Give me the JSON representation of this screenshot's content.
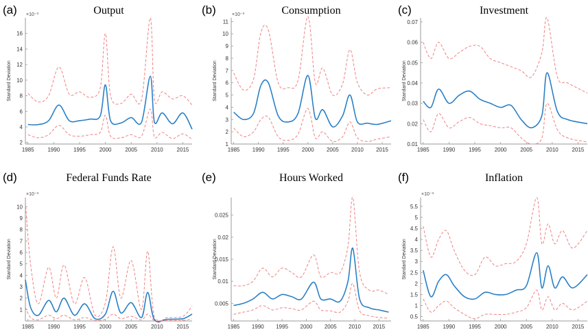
{
  "colors": {
    "median": "#2a7fc6",
    "band": "#f08080",
    "axis": "#9a9a9a"
  },
  "chart_data": [
    {
      "type": "line",
      "panel_label": "(a)",
      "title": "Output",
      "ylabel": "Standard Deviation",
      "exponent": "×10⁻³",
      "xlim": [
        1984.5,
        2016.8
      ],
      "ylim": [
        1.8,
        18
      ],
      "yticks": [
        2,
        4,
        6,
        8,
        10,
        12,
        14,
        16
      ],
      "xticks": [
        1985,
        1990,
        1995,
        2000,
        2005,
        2010,
        2015
      ],
      "x": [
        1985,
        1987,
        1989,
        1991,
        1993,
        1995,
        1997,
        1999,
        2000,
        2001,
        2003,
        2005,
        2007,
        2008.7,
        2009.5,
        2011,
        2013,
        2015,
        2016.8
      ],
      "series": [
        {
          "name": "",
          "role": "upper",
          "values": [
            8.3,
            7.2,
            8.0,
            11.7,
            8.2,
            8.5,
            7.8,
            9.0,
            16.0,
            8.0,
            7.0,
            8.2,
            7.5,
            18.0,
            7.5,
            8.5,
            7.6,
            8.0,
            6.8
          ]
        },
        {
          "name": "",
          "role": "median",
          "values": [
            4.3,
            4.3,
            4.8,
            6.8,
            4.8,
            4.8,
            5.0,
            5.4,
            9.4,
            4.8,
            4.5,
            5.2,
            4.6,
            10.5,
            4.6,
            5.8,
            4.4,
            5.8,
            3.7
          ]
        },
        {
          "name": "",
          "role": "lower",
          "values": [
            3.0,
            2.6,
            3.0,
            4.2,
            3.0,
            2.8,
            3.0,
            3.3,
            5.5,
            2.8,
            2.6,
            3.0,
            2.8,
            6.3,
            2.7,
            3.3,
            2.5,
            3.1,
            2.4
          ]
        }
      ]
    },
    {
      "type": "line",
      "panel_label": "(b)",
      "title": "Consumption",
      "ylabel": "Standard Deviation",
      "exponent": "×10⁻³",
      "xlim": [
        1984.5,
        2016.8
      ],
      "ylim": [
        1,
        11.3
      ],
      "yticks": [
        1,
        2,
        3,
        4,
        5,
        6,
        7,
        8,
        9,
        10,
        11
      ],
      "xticks": [
        1985,
        1990,
        1995,
        2000,
        2005,
        2010,
        2015
      ],
      "x": [
        1985,
        1987,
        1989,
        1990.5,
        1992,
        1994,
        1996,
        1998,
        2000,
        2001.5,
        2003,
        2005,
        2007,
        2008.5,
        2010,
        2012,
        2014,
        2016.8
      ],
      "series": [
        {
          "name": "",
          "role": "upper",
          "values": [
            6.8,
            5.4,
            6.3,
            10.1,
            10.3,
            6.0,
            5.6,
            6.2,
            11.4,
            6.0,
            7.2,
            5.0,
            5.9,
            8.7,
            6.0,
            5.0,
            5.5,
            5.6
          ]
        },
        {
          "name": "",
          "role": "median",
          "values": [
            3.6,
            3.0,
            3.5,
            5.8,
            6.0,
            3.3,
            2.8,
            3.5,
            6.6,
            3.1,
            3.8,
            2.4,
            3.3,
            5.0,
            2.8,
            2.7,
            2.6,
            2.9
          ]
        },
        {
          "name": "",
          "role": "lower",
          "values": [
            2.3,
            1.6,
            2.0,
            3.0,
            3.2,
            1.6,
            1.3,
            1.8,
            3.9,
            1.5,
            2.0,
            1.2,
            1.6,
            2.8,
            1.5,
            1.2,
            1.4,
            1.6
          ]
        }
      ]
    },
    {
      "type": "line",
      "panel_label": "(c)",
      "title": "Investment",
      "ylabel": "Standard Deviation",
      "exponent": "",
      "xlim": [
        1984.5,
        2016.8
      ],
      "ylim": [
        0.01,
        0.072
      ],
      "yticks": [
        0.01,
        0.02,
        0.03,
        0.04,
        0.05,
        0.06,
        0.07
      ],
      "xticks": [
        1985,
        1990,
        1995,
        2000,
        2005,
        2010,
        2015
      ],
      "x": [
        1985,
        1986.5,
        1988,
        1990,
        1992,
        1994,
        1996,
        1998,
        2000,
        2002,
        2004,
        2006,
        2008,
        2009,
        2011,
        2013,
        2016.8
      ],
      "series": [
        {
          "name": "",
          "role": "upper",
          "values": [
            0.06,
            0.052,
            0.06,
            0.052,
            0.055,
            0.058,
            0.058,
            0.052,
            0.05,
            0.048,
            0.046,
            0.043,
            0.055,
            0.072,
            0.043,
            0.04,
            0.035
          ]
        },
        {
          "name": "",
          "role": "median",
          "values": [
            0.031,
            0.028,
            0.037,
            0.03,
            0.034,
            0.036,
            0.032,
            0.03,
            0.028,
            0.029,
            0.022,
            0.018,
            0.024,
            0.045,
            0.026,
            0.022,
            0.02
          ]
        },
        {
          "name": "",
          "role": "lower",
          "values": [
            0.022,
            0.016,
            0.025,
            0.018,
            0.021,
            0.023,
            0.02,
            0.019,
            0.018,
            0.018,
            0.013,
            0.01,
            0.013,
            0.03,
            0.017,
            0.013,
            0.011
          ]
        }
      ]
    },
    {
      "type": "line",
      "panel_label": "(d)",
      "title": "Federal Funds Rate",
      "ylabel": "Standard Deviation",
      "exponent": "×10⁻³",
      "xlim": [
        1984.5,
        2016.8
      ],
      "ylim": [
        0,
        10.8
      ],
      "yticks": [
        1,
        2,
        3,
        4,
        5,
        6,
        7,
        8,
        9,
        10
      ],
      "xticks": [
        1985,
        1990,
        1995,
        2000,
        2005,
        2010,
        2015
      ],
      "x": [
        1984.5,
        1985.5,
        1987,
        1989,
        1990.5,
        1992,
        1994,
        1996,
        1998,
        2000,
        2001.5,
        2003,
        2005,
        2007,
        2008.2,
        2009.5,
        2012,
        2015,
        2016.8
      ],
      "series": [
        {
          "name": "",
          "role": "upper",
          "values": [
            10.4,
            5.0,
            1.5,
            4.7,
            2.0,
            4.9,
            1.5,
            3.8,
            0.5,
            1.6,
            6.5,
            2.0,
            5.3,
            1.0,
            6.1,
            0.3,
            0.3,
            0.4,
            1.3
          ]
        },
        {
          "name": "",
          "role": "median",
          "values": [
            3.6,
            1.2,
            0.5,
            1.8,
            0.8,
            2.0,
            0.5,
            1.5,
            0.2,
            0.6,
            2.6,
            0.7,
            1.6,
            0.3,
            2.5,
            0.1,
            0.15,
            0.2,
            0.6
          ]
        },
        {
          "name": "",
          "role": "lower",
          "values": [
            1.2,
            0.3,
            0.1,
            0.5,
            0.2,
            0.5,
            0.1,
            0.3,
            0.05,
            0.15,
            0.6,
            0.2,
            0.4,
            0.1,
            0.6,
            0.05,
            0.05,
            0.05,
            0.2
          ]
        }
      ]
    },
    {
      "type": "line",
      "panel_label": "(e)",
      "title": "Hours Worked",
      "ylabel": "Standard Deviation",
      "exponent": "",
      "xlim": [
        1984.5,
        2017.5
      ],
      "ylim": [
        0.001,
        0.029
      ],
      "yticks": [
        0.005,
        0.01,
        0.015,
        0.02,
        0.025
      ],
      "xticks": [
        1985,
        1990,
        1995,
        2000,
        2005,
        2010,
        2015
      ],
      "x": [
        1985,
        1987,
        1989,
        1991,
        1993,
        1995,
        1997,
        1999,
        2001.5,
        2003,
        2005,
        2007,
        2008.6,
        2009.6,
        2011,
        2013,
        2015,
        2017
      ],
      "series": [
        {
          "name": "",
          "role": "upper",
          "values": [
            0.009,
            0.009,
            0.01,
            0.013,
            0.011,
            0.013,
            0.012,
            0.011,
            0.016,
            0.011,
            0.012,
            0.012,
            0.018,
            0.029,
            0.012,
            0.008,
            0.008,
            0.007
          ]
        },
        {
          "name": "",
          "role": "median",
          "values": [
            0.0045,
            0.005,
            0.006,
            0.0075,
            0.006,
            0.007,
            0.0065,
            0.006,
            0.0098,
            0.006,
            0.006,
            0.0055,
            0.01,
            0.0175,
            0.006,
            0.004,
            0.0035,
            0.003
          ]
        },
        {
          "name": "",
          "role": "lower",
          "values": [
            0.0025,
            0.003,
            0.0035,
            0.0045,
            0.0035,
            0.004,
            0.0038,
            0.0035,
            0.0055,
            0.0035,
            0.0033,
            0.003,
            0.0055,
            0.0095,
            0.0033,
            0.0022,
            0.0018,
            0.0016
          ]
        }
      ]
    },
    {
      "type": "line",
      "panel_label": "(f)",
      "title": "Inflation",
      "ylabel": "Standard Deviation",
      "exponent": "×10⁻³",
      "xlim": [
        1984.5,
        2016.8
      ],
      "ylim": [
        0.3,
        5.9
      ],
      "yticks": [
        0.5,
        1,
        1.5,
        2,
        2.5,
        3,
        3.5,
        4,
        4.5,
        5,
        5.5
      ],
      "xticks": [
        1985,
        1990,
        1995,
        2000,
        2005,
        2010,
        2015
      ],
      "x": [
        1985,
        1986.5,
        1988,
        1989.5,
        1991,
        1993,
        1995,
        1997,
        1999,
        2001,
        2003,
        2005,
        2007,
        2008,
        2009.2,
        2010.5,
        2012,
        2014,
        2016.8
      ],
      "series": [
        {
          "name": "",
          "role": "upper",
          "values": [
            4.6,
            3.2,
            4.0,
            4.4,
            3.5,
            2.6,
            2.4,
            3.2,
            2.8,
            2.9,
            3.0,
            3.8,
            5.9,
            3.8,
            4.7,
            3.8,
            4.4,
            3.6,
            4.4
          ]
        },
        {
          "name": "",
          "role": "median",
          "values": [
            2.6,
            1.4,
            2.1,
            2.4,
            1.9,
            1.4,
            1.3,
            1.6,
            1.5,
            1.5,
            1.7,
            1.9,
            3.4,
            1.8,
            2.8,
            1.8,
            2.3,
            1.8,
            2.4
          ]
        },
        {
          "name": "",
          "role": "lower",
          "values": [
            1.3,
            0.7,
            1.0,
            1.2,
            0.9,
            0.6,
            0.4,
            0.6,
            0.6,
            0.6,
            0.7,
            0.9,
            1.7,
            0.8,
            1.4,
            0.8,
            1.1,
            0.8,
            1.2
          ]
        }
      ]
    }
  ]
}
